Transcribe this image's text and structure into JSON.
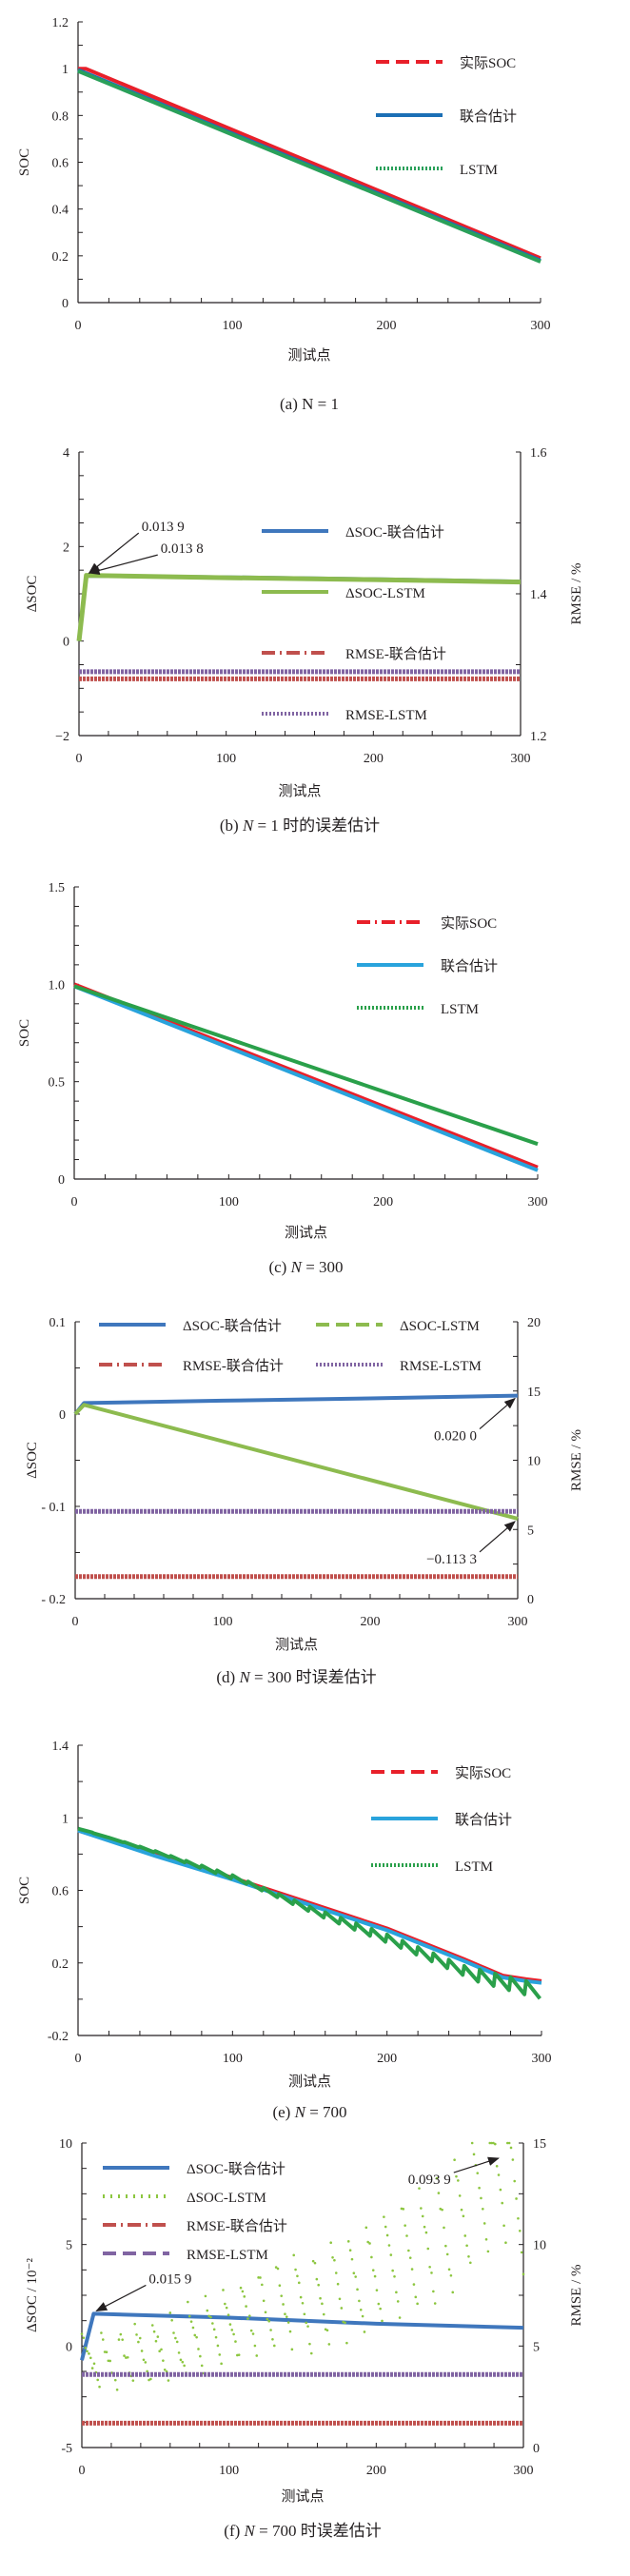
{
  "chart_data": [
    {
      "id": "a",
      "type": "line",
      "caption": "(a)  N = 1",
      "xlabel": "测试点",
      "ylabel": "SOC",
      "xlim": [
        0,
        300
      ],
      "ylim": [
        0,
        1.2
      ],
      "xticks": [
        0,
        100,
        200,
        300
      ],
      "xtick_labels": [
        "0",
        "100",
        "200",
        "300"
      ],
      "yticks": [
        0,
        0.2,
        0.4,
        0.6,
        0.8,
        1,
        1.2
      ],
      "ytick_labels": [
        "0",
        "0.2",
        "0.4",
        "0.6",
        "0.8",
        "1",
        "1.2"
      ],
      "legend_position": "top-right",
      "series": [
        {
          "name": "实际SOC",
          "color": "#e8202a",
          "style": "dashed",
          "x": [
            0,
            5,
            300
          ],
          "y": [
            1.0,
            1.0,
            0.19
          ]
        },
        {
          "name": "联合估计",
          "color": "#1b6fb5",
          "style": "solid",
          "x": [
            0,
            300
          ],
          "y": [
            0.995,
            0.18
          ]
        },
        {
          "name": "LSTM",
          "color": "#2aa05a",
          "style": "dotted",
          "x": [
            0,
            300
          ],
          "y": [
            0.99,
            0.175
          ]
        }
      ]
    },
    {
      "id": "b",
      "type": "line",
      "caption_parts": [
        "(b)  ",
        "N",
        " = 1 时的误差估计"
      ],
      "xlabel": "测试点",
      "ylabel": "ΔSOC",
      "y2label": "RMSE / %",
      "xlim": [
        0,
        300
      ],
      "ylim": [
        -2,
        4
      ],
      "y2lim": [
        1.2,
        1.6
      ],
      "xticks": [
        0,
        100,
        200,
        300
      ],
      "xtick_labels": [
        "0",
        "100",
        "200",
        "300"
      ],
      "yticks": [
        -2,
        0,
        2,
        4
      ],
      "ytick_labels": [
        "−2",
        "0",
        "2",
        "4"
      ],
      "y2ticks": [
        1.2,
        1.4,
        1.6
      ],
      "y2tick_labels": [
        "1.2",
        "1.4",
        "1.6"
      ],
      "legend_position": "center-right",
      "series": [
        {
          "name": "ΔSOC-联合估计",
          "axis": "left",
          "color": "#3f77bd",
          "style": "solid",
          "x": [
            0,
            5,
            100,
            200,
            300
          ],
          "y": [
            0,
            1.38,
            1.35,
            1.31,
            1.26
          ]
        },
        {
          "name": "ΔSOC-LSTM",
          "axis": "left",
          "color": "#8dbb4f",
          "style": "solid-thick",
          "x": [
            0,
            5,
            100,
            200,
            300
          ],
          "y": [
            0,
            1.39,
            1.34,
            1.3,
            1.25
          ]
        },
        {
          "name": "RMSE-联合估计",
          "axis": "right",
          "color": "#c0504d",
          "style": "dashdot",
          "x": [
            0,
            300
          ],
          "y": [
            1.28,
            1.28
          ]
        },
        {
          "name": "RMSE-LSTM",
          "axis": "right",
          "color": "#8064a2",
          "style": "dotted",
          "x": [
            0,
            300
          ],
          "y": [
            1.29,
            1.29
          ]
        }
      ],
      "annotations": [
        {
          "text": "0.013 9",
          "x": 5,
          "y": 1.38
        },
        {
          "text": "0.013 8",
          "x": 5,
          "y": 1.38
        }
      ]
    },
    {
      "id": "c",
      "type": "line",
      "caption_parts": [
        "(c)  ",
        "N",
        " = 300"
      ],
      "xlabel": "测试点",
      "ylabel": "SOC",
      "xlim": [
        0,
        300
      ],
      "ylim": [
        0,
        1.5
      ],
      "xticks": [
        0,
        100,
        200,
        300
      ],
      "xtick_labels": [
        "0",
        "100",
        "200",
        "300"
      ],
      "yticks": [
        0,
        0.5,
        1.0,
        1.5
      ],
      "ytick_labels": [
        "0",
        "0.5",
        "1.0",
        "1.5"
      ],
      "legend_position": "top-right",
      "series": [
        {
          "name": "实际SOC",
          "color": "#e8202a",
          "style": "dashdot",
          "x": [
            0,
            300
          ],
          "y": [
            1.0,
            0.06
          ]
        },
        {
          "name": "联合估计",
          "color": "#29a3dc",
          "style": "solid",
          "x": [
            0,
            300
          ],
          "y": [
            0.99,
            0.045
          ]
        },
        {
          "name": "LSTM",
          "color": "#2aa04a",
          "style": "dotted",
          "x": [
            0,
            300
          ],
          "y": [
            0.99,
            0.18
          ]
        }
      ]
    },
    {
      "id": "d",
      "type": "line",
      "caption_parts": [
        "(d)  ",
        "N",
        " = 300 时误差估计"
      ],
      "xlabel": "测试点",
      "ylabel": "ΔSOC",
      "y2label": "RMSE / %",
      "xlim": [
        0,
        300
      ],
      "ylim": [
        -0.2,
        0.1
      ],
      "y2lim": [
        0,
        20
      ],
      "xticks": [
        0,
        100,
        200,
        300
      ],
      "xtick_labels": [
        "0",
        "100",
        "200",
        "300"
      ],
      "yticks": [
        -0.2,
        -0.1,
        0,
        0.1
      ],
      "ytick_labels": [
        "- 0.2",
        "- 0.1",
        "0",
        "0.1"
      ],
      "y2ticks": [
        0,
        5,
        10,
        15,
        20
      ],
      "y2tick_labels": [
        "0",
        "5",
        "10",
        "15",
        "20"
      ],
      "legend_position": "top",
      "series": [
        {
          "name": "ΔSOC-联合估计",
          "axis": "left",
          "color": "#3f77bd",
          "style": "solid",
          "x": [
            0,
            6,
            100,
            200,
            300
          ],
          "y": [
            0,
            0.012,
            0.0145,
            0.017,
            0.02
          ]
        },
        {
          "name": "ΔSOC-LSTM",
          "axis": "left",
          "color": "#8dbb4f",
          "style": "dashed",
          "x": [
            0,
            6,
            300
          ],
          "y": [
            0,
            0.01,
            -0.1133
          ]
        },
        {
          "name": "RMSE-联合估计",
          "axis": "right",
          "color": "#c0504d",
          "style": "dashdot",
          "x": [
            0,
            300
          ],
          "y": [
            1.6,
            1.6
          ]
        },
        {
          "name": "RMSE-LSTM",
          "axis": "right",
          "color": "#8064a2",
          "style": "dotted",
          "x": [
            0,
            300
          ],
          "y": [
            6.3,
            6.3
          ]
        }
      ],
      "annotations": [
        {
          "text": "0.020 0",
          "x": 300,
          "y": 0.02
        },
        {
          "text": "−0.113 3",
          "x": 300,
          "y": -0.1133
        }
      ]
    },
    {
      "id": "e",
      "type": "line",
      "caption_parts": [
        "(e)  ",
        "N",
        " = 700"
      ],
      "xlabel": "测试点",
      "ylabel": "SOC",
      "xlim": [
        0,
        300
      ],
      "ylim": [
        -0.2,
        1.4
      ],
      "xticks": [
        0,
        100,
        200,
        300
      ],
      "xtick_labels": [
        "0",
        "100",
        "200",
        "300"
      ],
      "yticks": [
        -0.2,
        0.2,
        0.6,
        1.0,
        1.4
      ],
      "ytick_labels": [
        "-0.2",
        "0.2",
        "0.6",
        "1",
        "1.4"
      ],
      "legend_position": "top-right",
      "series": [
        {
          "name": "实际SOC",
          "color": "#e8202a",
          "style": "dashed",
          "x": [
            0,
            50,
            100,
            150,
            200,
            250,
            275,
            290,
            300
          ],
          "y": [
            0.93,
            0.8,
            0.67,
            0.53,
            0.39,
            0.22,
            0.13,
            0.11,
            0.1
          ]
        },
        {
          "name": "联合估计",
          "color": "#29a3dc",
          "style": "solid",
          "x": [
            0,
            50,
            100,
            150,
            200,
            250,
            275,
            290,
            300
          ],
          "y": [
            0.93,
            0.79,
            0.66,
            0.52,
            0.38,
            0.21,
            0.12,
            0.1,
            0.09
          ]
        },
        {
          "name": "LSTM",
          "color": "#2aa04a",
          "style": "dotted-sawtooth",
          "x": [
            0,
            50,
            100,
            150,
            200,
            250,
            300
          ],
          "y": [
            0.93,
            0.8,
            0.66,
            0.48,
            0.32,
            0.14,
            0.03
          ]
        }
      ]
    },
    {
      "id": "f",
      "type": "line",
      "caption_parts": [
        "(f)  ",
        "N",
        " = 700 时误差估计"
      ],
      "xlabel": "测试点",
      "ylabel": "ΔSOC / 10⁻²",
      "y2label": "RMSE / %",
      "xlim": [
        0,
        300
      ],
      "ylim": [
        -5,
        10
      ],
      "y2lim": [
        0,
        15
      ],
      "xticks": [
        0,
        100,
        200,
        300
      ],
      "xtick_labels": [
        "0",
        "100",
        "200",
        "300"
      ],
      "yticks": [
        -5,
        0,
        5,
        10
      ],
      "ytick_labels": [
        "-5",
        "0",
        "5",
        "10"
      ],
      "y2ticks": [
        0,
        5,
        10,
        15
      ],
      "y2tick_labels": [
        "0",
        "5",
        "10",
        "15"
      ],
      "legend_position": "top-left",
      "series": [
        {
          "name": "ΔSOC-联合估计",
          "axis": "left",
          "color": "#3f77bd",
          "style": "solid",
          "x": [
            0,
            8,
            100,
            200,
            300
          ],
          "y": [
            -0.7,
            1.59,
            1.4,
            1.1,
            0.9
          ]
        },
        {
          "name": "ΔSOC-LSTM",
          "axis": "left",
          "color": "#8cc63f",
          "style": "scatter-dots",
          "x": [
            0,
            50,
            100,
            150,
            200,
            250,
            285,
            300
          ],
          "y": [
            -0.6,
            -0.5,
            0.8,
            2.2,
            3.8,
            6.0,
            9.39,
            7.5
          ]
        },
        {
          "name": "RMSE-联合估计",
          "axis": "right",
          "color": "#c0504d",
          "style": "dashdot",
          "x": [
            0,
            300
          ],
          "y": [
            1.2,
            1.2
          ]
        },
        {
          "name": "RMSE-LSTM",
          "axis": "right",
          "color": "#8064a2",
          "style": "dashed",
          "x": [
            0,
            300
          ],
          "y": [
            3.6,
            3.6
          ]
        }
      ],
      "annotations": [
        {
          "text": "0.015 9",
          "x": 8,
          "y": 1.59
        },
        {
          "text": "0.093 9",
          "x": 285,
          "y": 9.39
        }
      ]
    }
  ]
}
